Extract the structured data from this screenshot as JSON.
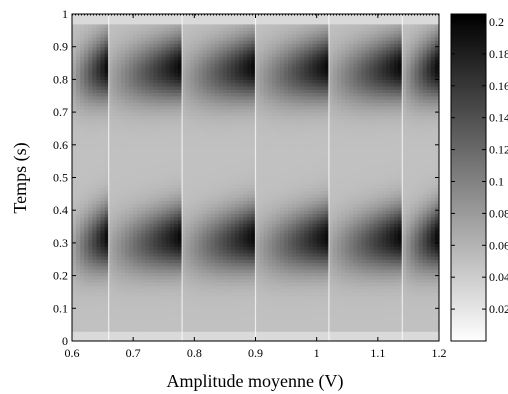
{
  "chart_data": {
    "type": "heatmap",
    "xlabel": "Amplitude moyenne (V)",
    "ylabel": "Temps (s)",
    "xlim": [
      0.6,
      1.2
    ],
    "ylim": [
      0,
      1
    ],
    "x_ticks": [
      "0.6",
      "0.7",
      "0.8",
      "0.9",
      "1",
      "1.1",
      "1.2"
    ],
    "y_ticks": [
      "0",
      "0.1",
      "0.2",
      "0.3",
      "0.4",
      "0.5",
      "0.6",
      "0.7",
      "0.8",
      "0.9",
      "1"
    ],
    "colorbar": {
      "colormap": "gray-inverted",
      "range": [
        0,
        0.205
      ],
      "ticks": [
        "0.02",
        "0.04",
        "0.06",
        "0.08",
        "0.1",
        "0.12",
        "0.14",
        "0.16",
        "0.18",
        "0.2"
      ]
    },
    "segment_edges_x": [
      0.66,
      0.78,
      0.9,
      1.02,
      1.14
    ],
    "bands": [
      {
        "t_center": 0.3,
        "t_width": 0.12,
        "peak_value": 0.2
      },
      {
        "t_center": 0.82,
        "t_width": 0.12,
        "peak_value": 0.2
      }
    ],
    "background_value": 0.05
  }
}
